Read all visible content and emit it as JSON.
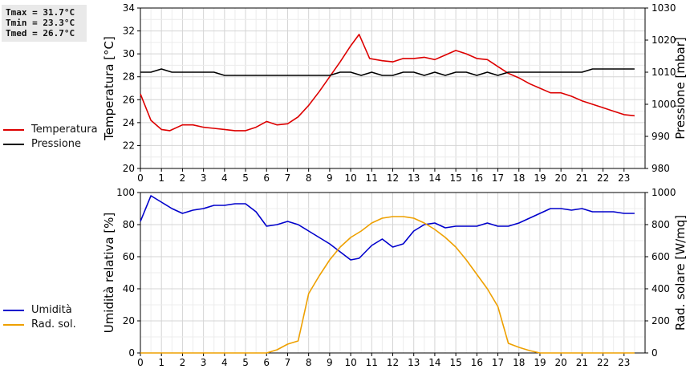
{
  "stats": {
    "tmax": "Tmax = 31.7°C",
    "tmin": "Tmin = 23.3°C",
    "tmed": "Tmed = 26.7°C"
  },
  "chart_data": [
    {
      "type": "line",
      "ylabel": "Temperatura [°C]",
      "y2label": "Pressione [mbar]",
      "ylim": [
        20,
        34
      ],
      "y2lim": [
        980,
        1030
      ],
      "xlim": [
        0,
        24
      ],
      "xticks": [
        "0",
        "1",
        "2",
        "3",
        "4",
        "5",
        "6",
        "7",
        "8",
        "9",
        "10",
        "11",
        "12",
        "13",
        "14",
        "15",
        "16",
        "17",
        "18",
        "19",
        "20",
        "21",
        "22",
        "23"
      ],
      "yticks": [
        "20",
        "22",
        "24",
        "26",
        "28",
        "30",
        "32",
        "34"
      ],
      "y2ticks": [
        "980",
        "990",
        "1000",
        "1010",
        "1020",
        "1030"
      ],
      "grid": true,
      "legend_position": "left",
      "series": [
        {
          "name": "Temperatura",
          "axis": "left",
          "color": "#dd0000",
          "x": [
            0,
            0.5,
            1,
            1.4,
            2,
            2.5,
            3,
            3.5,
            4,
            4.5,
            5,
            5.5,
            6,
            6.5,
            7,
            7.5,
            8,
            8.5,
            9,
            9.5,
            10,
            10.4,
            10.9,
            11.5,
            12,
            12.5,
            13,
            13.5,
            14,
            14.5,
            15,
            15.5,
            16,
            16.5,
            17,
            17.5,
            18,
            18.5,
            19,
            19.5,
            20,
            20.5,
            21,
            21.5,
            22,
            22.5,
            23,
            23.5
          ],
          "y": [
            26.5,
            24.2,
            23.4,
            23.3,
            23.8,
            23.8,
            23.6,
            23.5,
            23.4,
            23.3,
            23.3,
            23.6,
            24.1,
            23.8,
            23.9,
            24.5,
            25.5,
            26.7,
            28,
            29.3,
            30.7,
            31.7,
            29.6,
            29.4,
            29.3,
            29.6,
            29.6,
            29.7,
            29.5,
            29.9,
            30.3,
            30.0,
            29.6,
            29.5,
            28.9,
            28.3,
            27.9,
            27.4,
            27.0,
            26.6,
            26.6,
            26.3,
            25.9,
            25.6,
            25.3,
            25.0,
            24.7,
            24.6
          ]
        },
        {
          "name": "Pressione",
          "axis": "right",
          "color": "#000000",
          "x": [
            0,
            0.5,
            1,
            1.5,
            2,
            2.5,
            3,
            3.5,
            4,
            4.5,
            5,
            6,
            7,
            8,
            9,
            9.5,
            10,
            10.5,
            11,
            11.5,
            12,
            12.5,
            13,
            13.5,
            14,
            14.5,
            15,
            15.5,
            16,
            16.5,
            17,
            17.5,
            18,
            19,
            20,
            21,
            21.5,
            22,
            23,
            23.5
          ],
          "y": [
            1010,
            1010,
            1011,
            1010,
            1010,
            1010,
            1010,
            1010,
            1009,
            1009,
            1009,
            1009,
            1009,
            1009,
            1009,
            1010,
            1010,
            1009,
            1010,
            1009,
            1009,
            1010,
            1010,
            1009,
            1010,
            1009,
            1010,
            1010,
            1009,
            1010,
            1009,
            1010,
            1010,
            1010,
            1010,
            1010,
            1011,
            1011,
            1011,
            1011
          ]
        }
      ]
    },
    {
      "type": "line",
      "ylabel": "Umidità relativa [%]",
      "y2label": "Rad. solare [W/mq]",
      "ylim": [
        0,
        100
      ],
      "y2lim": [
        0,
        1000
      ],
      "xlim": [
        0,
        24
      ],
      "xticks": [
        "0",
        "1",
        "2",
        "3",
        "4",
        "5",
        "6",
        "7",
        "8",
        "9",
        "10",
        "11",
        "12",
        "13",
        "14",
        "15",
        "16",
        "17",
        "18",
        "19",
        "20",
        "21",
        "22",
        "23"
      ],
      "yticks": [
        "0",
        "20",
        "40",
        "60",
        "80",
        "100"
      ],
      "y2ticks": [
        "0",
        "200",
        "400",
        "600",
        "800",
        "1000"
      ],
      "grid": true,
      "legend_position": "left",
      "series": [
        {
          "name": "Umidità",
          "axis": "left",
          "color": "#0000cc",
          "x": [
            0,
            0.5,
            1,
            1.5,
            2,
            2.5,
            3,
            3.5,
            4,
            4.5,
            5,
            5.5,
            6,
            6.5,
            7,
            7.5,
            8,
            8.5,
            9,
            9.5,
            10,
            10.4,
            11,
            11.5,
            12,
            12.5,
            13,
            13.5,
            14,
            14.5,
            15,
            15.5,
            16,
            16.5,
            17,
            17.5,
            18,
            18.5,
            19,
            19.5,
            20,
            20.5,
            21,
            21.5,
            22,
            22.5,
            23,
            23.5
          ],
          "y": [
            82,
            98,
            94,
            90,
            87,
            89,
            90,
            92,
            92,
            93,
            93,
            88,
            79,
            80,
            82,
            80,
            76,
            72,
            68,
            63,
            58,
            59,
            67,
            71,
            66,
            68,
            76,
            80,
            81,
            78,
            79,
            79,
            79,
            81,
            79,
            79,
            81,
            84,
            87,
            90,
            90,
            89,
            90,
            88,
            88,
            88,
            87,
            87
          ]
        },
        {
          "name": "Rad. sol.",
          "axis": "right",
          "color": "#eea000",
          "x": [
            0,
            1,
            2,
            3,
            4,
            5,
            6,
            6.5,
            7,
            7.5,
            8,
            8.5,
            9,
            9.5,
            10,
            10.5,
            11,
            11.5,
            12,
            12.5,
            13,
            13.5,
            14,
            14.5,
            15,
            15.5,
            16,
            16.5,
            17,
            17.5,
            18,
            18.5,
            19,
            20,
            21,
            22,
            23,
            23.5
          ],
          "y": [
            0,
            0,
            0,
            0,
            0,
            0,
            0,
            20,
            55,
            75,
            370,
            480,
            580,
            660,
            720,
            760,
            810,
            840,
            850,
            850,
            840,
            810,
            770,
            720,
            660,
            580,
            490,
            400,
            290,
            60,
            35,
            15,
            0,
            0,
            0,
            0,
            0,
            0
          ]
        }
      ]
    }
  ]
}
